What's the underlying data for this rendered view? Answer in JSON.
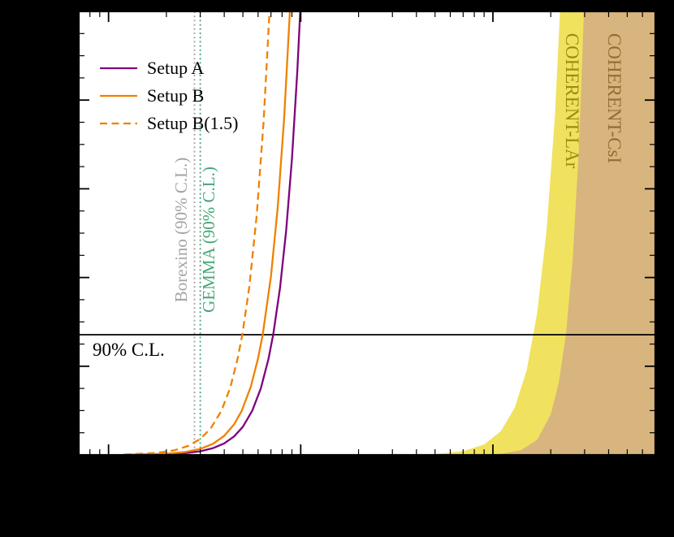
{
  "figure": {
    "background_color": "#000000",
    "plot_background_color": "#ffffff",
    "frame_color": "#000000"
  },
  "chart_data": {
    "type": "line",
    "title": "",
    "xlabel": "",
    "ylabel": "",
    "x_scale": "log",
    "y_scale": "linear",
    "xlim": [
      7e-12,
      7e-09
    ],
    "ylim": [
      0,
      10
    ],
    "grid": false,
    "legend_position": "upper-left",
    "confidence_line": {
      "label": "90% C.L.",
      "y": 2.71
    },
    "series": [
      {
        "name": "Setup A",
        "color": "#800080",
        "style": "solid",
        "points": [
          [
            1.2e-11,
            0.0002
          ],
          [
            2e-11,
            0.016
          ],
          [
            2.5e-11,
            0.04
          ],
          [
            3e-11,
            0.082
          ],
          [
            3.5e-11,
            0.153
          ],
          [
            4e-11,
            0.26
          ],
          [
            4.5e-11,
            0.417
          ],
          [
            5e-11,
            0.636
          ],
          [
            5.6e-11,
            1.0
          ],
          [
            6.2e-11,
            1.5
          ],
          [
            6.8e-11,
            2.17
          ],
          [
            7.2e-11,
            2.73
          ],
          [
            7.8e-11,
            3.76
          ],
          [
            8.4e-11,
            5.06
          ],
          [
            9e-11,
            6.67
          ],
          [
            9.6e-11,
            8.64
          ],
          [
            1.02e-10,
            11.0
          ]
        ]
      },
      {
        "name": "Setup B",
        "color": "#f08100",
        "style": "solid",
        "points": [
          [
            1.2e-11,
            0.0035
          ],
          [
            2e-11,
            0.027
          ],
          [
            2.5e-11,
            0.066
          ],
          [
            3e-11,
            0.136
          ],
          [
            3.5e-11,
            0.252
          ],
          [
            4e-11,
            0.43
          ],
          [
            4.5e-11,
            0.689
          ],
          [
            4.94e-11,
            1.0
          ],
          [
            5.5e-11,
            1.54
          ],
          [
            6e-11,
            2.18
          ],
          [
            6.34e-11,
            2.71
          ],
          [
            7e-11,
            4.03
          ],
          [
            7.6e-11,
            5.6
          ],
          [
            8.2e-11,
            7.59
          ],
          [
            8.8e-11,
            10.07
          ],
          [
            9.1e-11,
            11.5
          ]
        ]
      },
      {
        "name": "Setup B(1.5)",
        "color": "#f08100",
        "style": "dashed",
        "points": [
          [
            1.2e-11,
            0.009
          ],
          [
            1.8e-11,
            0.047
          ],
          [
            2.2e-11,
            0.105
          ],
          [
            2.6e-11,
            0.204
          ],
          [
            3e-11,
            0.361
          ],
          [
            3.4e-11,
            0.596
          ],
          [
            3.87e-11,
            1.0
          ],
          [
            4.3e-11,
            1.52
          ],
          [
            4.7e-11,
            2.18
          ],
          [
            4.97e-11,
            2.72
          ],
          [
            5.4e-11,
            3.79
          ],
          [
            5.9e-11,
            5.4
          ],
          [
            6.4e-11,
            7.48
          ],
          [
            6.9e-11,
            10.1
          ],
          [
            7.15e-11,
            11.7
          ]
        ]
      }
    ],
    "vlines": [
      {
        "name": "Borexino (90% C.L.)",
        "x": 2.8e-11,
        "color": "#a3a3a3",
        "style": "dotted"
      },
      {
        "name": "GEMMA (90% C.L.)",
        "x": 3e-11,
        "color": "#46a579",
        "style": "dotted"
      }
    ],
    "regions": [
      {
        "name": "COHERENT-LAr",
        "fill": "#f0e25e",
        "label_color": "#9b8b11",
        "boundary_points": [
          [
            1e-10,
            0.0
          ],
          [
            1.8e-10,
            0.001
          ],
          [
            3e-10,
            0.003
          ],
          [
            5e-10,
            0.021
          ],
          [
            7e-10,
            0.084
          ],
          [
            9e-10,
            0.236
          ],
          [
            1.1e-09,
            0.537
          ],
          [
            1.3e-09,
            1.07
          ],
          [
            1.5e-09,
            1.92
          ],
          [
            1.7e-09,
            3.2
          ],
          [
            1.9e-09,
            5.05
          ],
          [
            2.1e-09,
            7.62
          ],
          [
            2.3e-09,
            11.1
          ]
        ]
      },
      {
        "name": "COHERENT-CsI",
        "fill": "#d8b57e",
        "label_color": "#8f6d35",
        "boundary_points": [
          [
            4e-10,
            0.0
          ],
          [
            6e-10,
            0.001
          ],
          [
            8e-10,
            0.004
          ],
          [
            1.1e-09,
            0.025
          ],
          [
            1.4e-09,
            0.108
          ],
          [
            1.7e-09,
            0.345
          ],
          [
            2e-09,
            0.914
          ],
          [
            2.2e-09,
            1.62
          ],
          [
            2.4e-09,
            2.73
          ],
          [
            2.6e-09,
            4.41
          ],
          [
            2.8e-09,
            6.89
          ],
          [
            3e-09,
            10.4
          ],
          [
            3.1e-09,
            12.0
          ]
        ]
      }
    ]
  },
  "legend": {
    "items": [
      {
        "label": "Setup A"
      },
      {
        "label": "Setup B"
      },
      {
        "label": "Setup B(1.5)"
      }
    ]
  },
  "annotations": {
    "cl_label": "90% C.L."
  }
}
